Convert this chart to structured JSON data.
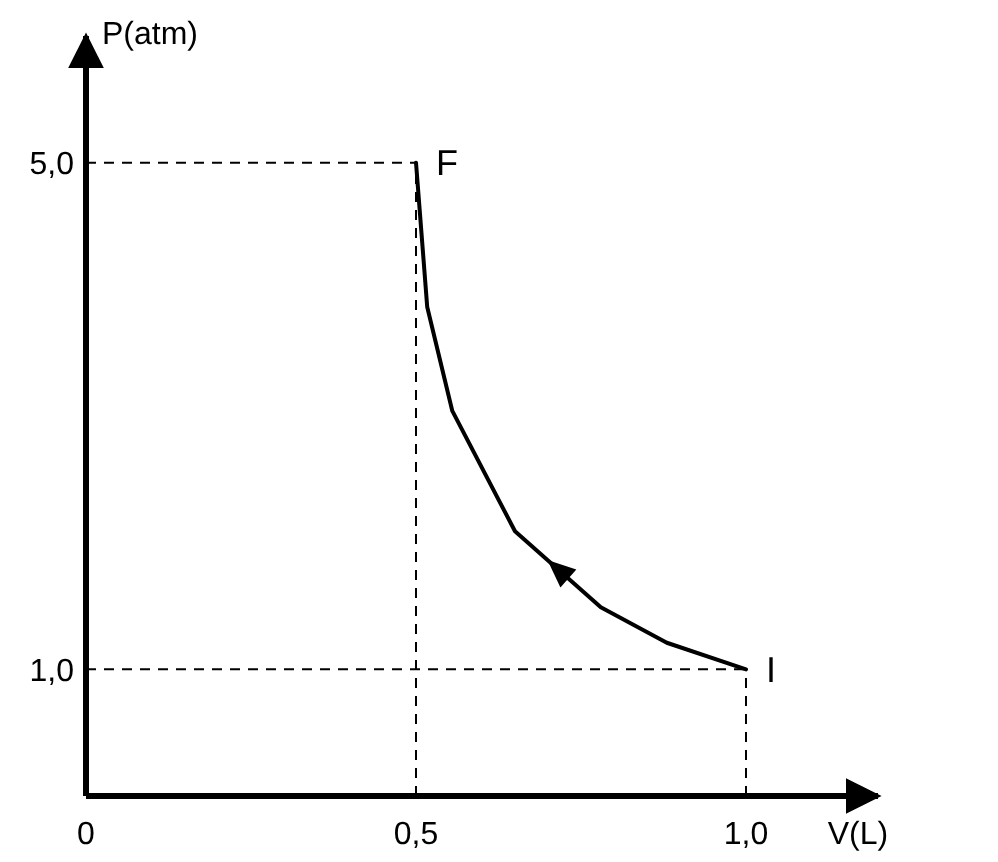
{
  "chart_data": {
    "type": "line",
    "xlabel": "V(L)",
    "ylabel": "P(atm)",
    "x": [
      1.0,
      0.88,
      0.78,
      0.65,
      0.555,
      0.517,
      0.5
    ],
    "series": [
      {
        "color": "#000000",
        "values": [
          1.0,
          1.21,
          1.49,
          2.09,
          3.04,
          3.86,
          5.0
        ]
      }
    ],
    "xlim": [
      0,
      1.2
    ],
    "ylim": [
      0,
      6
    ],
    "xticks": [
      {
        "value": 0,
        "label": "0"
      },
      {
        "value": 0.5,
        "label": "0,5"
      },
      {
        "value": 1,
        "label": "1,0"
      }
    ],
    "yticks": [
      {
        "value": 1,
        "label": "1,0"
      },
      {
        "value": 5,
        "label": "5,0"
      }
    ],
    "ref_lines": [
      {
        "axis": "y",
        "value": 5,
        "line_style": "dashed"
      },
      {
        "axis": "y",
        "value": 1,
        "line_style": "dashed"
      },
      {
        "axis": "x",
        "value": 0.5,
        "line_style": "dashed"
      },
      {
        "axis": "x",
        "value": 1,
        "line_style": "dashed"
      }
    ],
    "annotations": [
      {
        "text": "F",
        "x": 0.5,
        "y": 5.0
      },
      {
        "text": "I",
        "x": 1.0,
        "y": 1.0
      }
    ],
    "grid": false,
    "marker": "none",
    "line_style": "solid"
  }
}
